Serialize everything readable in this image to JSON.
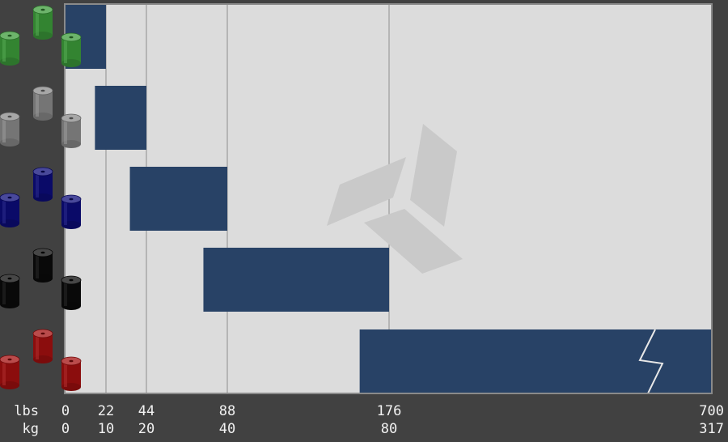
{
  "chart_data": {
    "type": "bar",
    "orientation": "horizontal",
    "chart_kind": "range-bar",
    "axis_labels": {
      "primary": "lbs",
      "secondary": "kg"
    },
    "x_ticks": [
      {
        "lbs": "0",
        "kg": "0",
        "value": 0
      },
      {
        "lbs": "22",
        "kg": "10",
        "value": 22
      },
      {
        "lbs": "44",
        "kg": "20",
        "value": 44
      },
      {
        "lbs": "88",
        "kg": "40",
        "value": 88
      },
      {
        "lbs": "176",
        "kg": "80",
        "value": 176
      },
      {
        "lbs": "700",
        "kg": "317",
        "value": 700
      }
    ],
    "axis_break": {
      "from": 176,
      "to": 700,
      "note": "zigzag break drawn on last bar"
    },
    "grid": true,
    "rows": [
      {
        "color_name": "green",
        "color": "#3c9b3a",
        "start": 0,
        "end": 22
      },
      {
        "color_name": "grey",
        "color": "#8a8a8a",
        "start": 16,
        "end": 44
      },
      {
        "color_name": "blue",
        "color": "#0c0c7a",
        "start": 35,
        "end": 88
      },
      {
        "color_name": "black",
        "color": "#0a0a0a",
        "start": 75,
        "end": 176
      },
      {
        "color_name": "red",
        "color": "#a30f0f",
        "start": 160,
        "end": 700
      }
    ],
    "bar_color": "#284266",
    "plot_background": "#dcdcdc",
    "watermark": "logo"
  }
}
